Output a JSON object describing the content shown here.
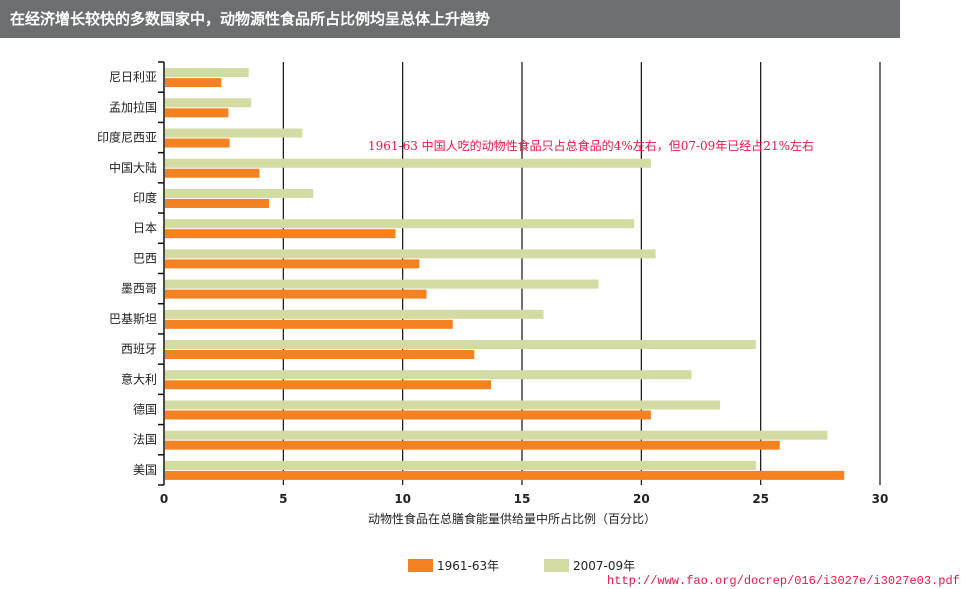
{
  "header": {
    "title": "在经济增长较快的多数国家中，动物源性食品所占比例均呈总体上升趋势"
  },
  "annotation": "1961-63 中国人吃的动物性食品只占总食品的4%左右，但07-09年已经占21%左右",
  "source_url": "http://www.fao.org/docrep/016/i3027e/i3027e03.pdf",
  "chart_data": {
    "type": "bar",
    "orientation": "horizontal",
    "title": "",
    "xlabel": "动物性食品在总膳食能量供给量中所占比例（百分比）",
    "ylabel": "",
    "xlim": [
      0,
      30
    ],
    "xticks": [
      "0",
      "5",
      "10",
      "15",
      "20",
      "25",
      "30"
    ],
    "grid": true,
    "legend_position": "bottom",
    "categories": [
      "尼日利亚",
      "孟加拉国",
      "印度尼西亚",
      "中国大陆",
      "印度",
      "日本",
      "巴西",
      "墨西哥",
      "巴基斯坦",
      "西班牙",
      "意大利",
      "德国",
      "法国",
      "美国"
    ],
    "series": [
      {
        "name": "1961-63年",
        "color": "#f58220",
        "values": [
          2.4,
          2.7,
          2.75,
          4.0,
          4.4,
          9.7,
          10.7,
          11.0,
          12.1,
          13.0,
          13.7,
          20.4,
          25.8,
          28.5
        ]
      },
      {
        "name": "2007-09年",
        "color": "#d3dba3",
        "values": [
          3.55,
          3.65,
          5.8,
          20.4,
          6.25,
          19.7,
          20.6,
          18.2,
          15.9,
          24.8,
          22.1,
          23.3,
          27.8,
          24.8
        ]
      }
    ]
  }
}
